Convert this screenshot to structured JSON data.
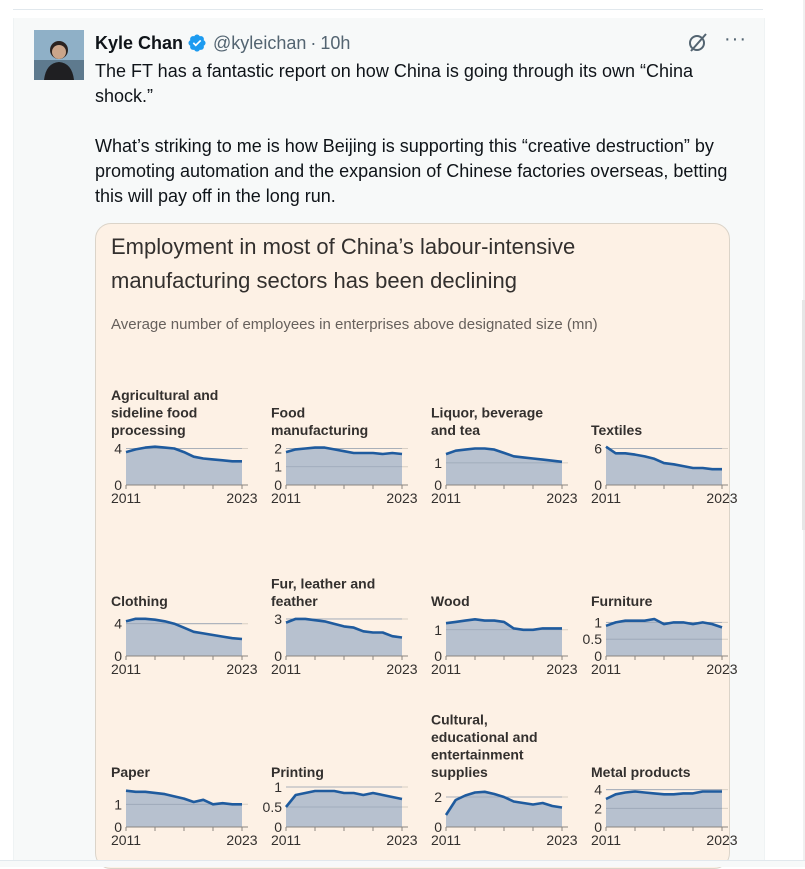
{
  "author": {
    "name": "Kyle Chan",
    "handle": "@kyleichan",
    "separator": "·",
    "time": "10h"
  },
  "tweet": {
    "paragraph1": "The FT has a fantastic report on how China is going through its own “China shock.”",
    "paragraph2": "What’s striking to me is how Beijing is supporting this “creative destruction” by promoting automation and the expansion of Chinese factories overseas, betting this will pay off in the long run."
  },
  "icons": {
    "verified": "verified-badge-icon",
    "grok": "grok-icon",
    "more": "more-icon",
    "more_glyph": "···"
  },
  "colors": {
    "verified": "#1d9bf0",
    "chart_background": "#fdf1e5",
    "series_line": "#1f5b9e",
    "series_fill": "#b7c1cf"
  },
  "chart_data": [
    {
      "type": "area",
      "title_lines": [
        "Agricultural and",
        "sideline food",
        "processing"
      ],
      "x": [
        2011,
        2012,
        2013,
        2014,
        2015,
        2016,
        2017,
        2018,
        2019,
        2020,
        2021,
        2022,
        2023
      ],
      "values": [
        3.6,
        3.9,
        4.1,
        4.2,
        4.1,
        4.0,
        3.6,
        3.1,
        2.9,
        2.8,
        2.7,
        2.6,
        2.6
      ],
      "ylim": [
        0,
        4.6
      ],
      "yticks": [
        {
          "v": 0,
          "label": "0"
        },
        {
          "v": 4,
          "label": "4"
        }
      ],
      "xticks": [
        "2011",
        "2023"
      ]
    },
    {
      "type": "area",
      "title_lines": [
        "Food",
        "manufacturing"
      ],
      "x": [
        2011,
        2012,
        2013,
        2014,
        2015,
        2016,
        2017,
        2018,
        2019,
        2020,
        2021,
        2022,
        2023
      ],
      "values": [
        1.8,
        1.95,
        2.0,
        2.05,
        2.05,
        1.95,
        1.85,
        1.75,
        1.75,
        1.75,
        1.7,
        1.75,
        1.7
      ],
      "ylim": [
        0,
        2.3
      ],
      "yticks": [
        {
          "v": 0,
          "label": "0"
        },
        {
          "v": 1,
          "label": "1"
        },
        {
          "v": 2,
          "label": "2"
        }
      ],
      "xticks": [
        "2011",
        "2023"
      ]
    },
    {
      "type": "area",
      "title_lines": [
        "Liquor, beverage",
        "and tea"
      ],
      "x": [
        2011,
        2012,
        2013,
        2014,
        2015,
        2016,
        2017,
        2018,
        2019,
        2020,
        2021,
        2022,
        2023
      ],
      "values": [
        1.4,
        1.55,
        1.6,
        1.65,
        1.65,
        1.6,
        1.45,
        1.3,
        1.25,
        1.2,
        1.15,
        1.1,
        1.05
      ],
      "ylim": [
        0,
        1.9
      ],
      "yticks": [
        {
          "v": 0,
          "label": "0"
        },
        {
          "v": 1,
          "label": "1"
        }
      ],
      "xticks": [
        "2011",
        "2023"
      ]
    },
    {
      "type": "area",
      "title_lines": [
        "Textiles"
      ],
      "x": [
        2011,
        2012,
        2013,
        2014,
        2015,
        2016,
        2017,
        2018,
        2019,
        2020,
        2021,
        2022,
        2023
      ],
      "values": [
        6.3,
        5.2,
        5.2,
        5.0,
        4.7,
        4.3,
        3.6,
        3.4,
        3.1,
        2.8,
        2.8,
        2.6,
        2.6
      ],
      "ylim": [
        0,
        6.9
      ],
      "yticks": [
        {
          "v": 0,
          "label": "0"
        },
        {
          "v": 6,
          "label": "6"
        }
      ],
      "xticks": [
        "2011",
        "2023"
      ]
    },
    {
      "type": "area",
      "title_lines": [
        "Clothing"
      ],
      "x": [
        2011,
        2012,
        2013,
        2014,
        2015,
        2016,
        2017,
        2018,
        2019,
        2020,
        2021,
        2022,
        2023
      ],
      "values": [
        4.3,
        4.6,
        4.6,
        4.5,
        4.3,
        4.0,
        3.5,
        3.0,
        2.8,
        2.6,
        2.4,
        2.2,
        2.1
      ],
      "ylim": [
        0,
        5.2
      ],
      "yticks": [
        {
          "v": 0,
          "label": "0"
        },
        {
          "v": 4,
          "label": "4"
        }
      ],
      "xticks": [
        "2011",
        "2023"
      ]
    },
    {
      "type": "area",
      "title_lines": [
        "Fur, leather and",
        "feather"
      ],
      "x": [
        2011,
        2012,
        2013,
        2014,
        2015,
        2016,
        2017,
        2018,
        2019,
        2020,
        2021,
        2022,
        2023
      ],
      "values": [
        2.7,
        3.0,
        3.0,
        2.9,
        2.8,
        2.6,
        2.4,
        2.3,
        2.0,
        1.9,
        1.9,
        1.6,
        1.5
      ],
      "ylim": [
        0,
        3.4
      ],
      "yticks": [
        {
          "v": 0,
          "label": "0"
        },
        {
          "v": 3,
          "label": "3"
        }
      ],
      "xticks": [
        "2011",
        "2023"
      ]
    },
    {
      "type": "area",
      "title_lines": [
        "Wood"
      ],
      "x": [
        2011,
        2012,
        2013,
        2014,
        2015,
        2016,
        2017,
        2018,
        2019,
        2020,
        2021,
        2022,
        2023
      ],
      "values": [
        1.25,
        1.3,
        1.35,
        1.4,
        1.35,
        1.35,
        1.3,
        1.05,
        1.0,
        1.0,
        1.05,
        1.05,
        1.05
      ],
      "ylim": [
        0,
        1.6
      ],
      "yticks": [
        {
          "v": 0,
          "label": "0"
        },
        {
          "v": 1,
          "label": "1"
        }
      ],
      "xticks": [
        "2011",
        "2023"
      ]
    },
    {
      "type": "area",
      "title_lines": [
        "Furniture"
      ],
      "x": [
        2011,
        2012,
        2013,
        2014,
        2015,
        2016,
        2017,
        2018,
        2019,
        2020,
        2021,
        2022,
        2023
      ],
      "values": [
        0.9,
        1.0,
        1.05,
        1.05,
        1.05,
        1.1,
        0.95,
        1.0,
        1.0,
        0.95,
        1.0,
        0.95,
        0.85
      ],
      "ylim": [
        0,
        1.25
      ],
      "yticks": [
        {
          "v": 0,
          "label": "0"
        },
        {
          "v": 0.5,
          "label": "0.5"
        },
        {
          "v": 1,
          "label": "1"
        }
      ],
      "xticks": [
        "2011",
        "2023"
      ]
    },
    {
      "type": "area",
      "title_lines": [
        "Paper"
      ],
      "x": [
        2011,
        2012,
        2013,
        2014,
        2015,
        2016,
        2017,
        2018,
        2019,
        2020,
        2021,
        2022,
        2023
      ],
      "values": [
        1.6,
        1.55,
        1.55,
        1.5,
        1.45,
        1.35,
        1.25,
        1.1,
        1.2,
        1.0,
        1.05,
        1.0,
        1.0
      ],
      "ylim": [
        0,
        1.85
      ],
      "yticks": [
        {
          "v": 0,
          "label": "0"
        },
        {
          "v": 1,
          "label": "1"
        }
      ],
      "xticks": [
        "2011",
        "2023"
      ]
    },
    {
      "type": "area",
      "title_lines": [
        "Printing"
      ],
      "x": [
        2011,
        2012,
        2013,
        2014,
        2015,
        2016,
        2017,
        2018,
        2019,
        2020,
        2021,
        2022,
        2023
      ],
      "values": [
        0.5,
        0.8,
        0.85,
        0.9,
        0.9,
        0.9,
        0.85,
        0.85,
        0.8,
        0.85,
        0.8,
        0.75,
        0.7
      ],
      "ylim": [
        0,
        1.05
      ],
      "yticks": [
        {
          "v": 0,
          "label": "0"
        },
        {
          "v": 0.5,
          "label": "0.5"
        },
        {
          "v": 1,
          "label": "1"
        }
      ],
      "xticks": [
        "2011",
        "2023"
      ]
    },
    {
      "type": "area",
      "title_lines": [
        "Cultural,",
        "educational and",
        "entertainment",
        "supplies"
      ],
      "x": [
        2011,
        2012,
        2013,
        2014,
        2015,
        2016,
        2017,
        2018,
        2019,
        2020,
        2021,
        2022,
        2023
      ],
      "values": [
        0.8,
        1.8,
        2.1,
        2.3,
        2.35,
        2.2,
        2.0,
        1.7,
        1.6,
        1.5,
        1.6,
        1.4,
        1.3
      ],
      "ylim": [
        0,
        2.8
      ],
      "yticks": [
        {
          "v": 0,
          "label": "0"
        },
        {
          "v": 2,
          "label": "2"
        }
      ],
      "xticks": [
        "2011",
        "2023"
      ]
    },
    {
      "type": "area",
      "title_lines": [
        "Metal products"
      ],
      "x": [
        2011,
        2012,
        2013,
        2014,
        2015,
        2016,
        2017,
        2018,
        2019,
        2020,
        2021,
        2022,
        2023
      ],
      "values": [
        3.0,
        3.5,
        3.7,
        3.8,
        3.7,
        3.6,
        3.5,
        3.5,
        3.6,
        3.6,
        3.8,
        3.8,
        3.8
      ],
      "ylim": [
        0,
        4.5
      ],
      "yticks": [
        {
          "v": 0,
          "label": "0"
        },
        {
          "v": 2,
          "label": "2"
        },
        {
          "v": 4,
          "label": "4"
        }
      ],
      "xticks": [
        "2011",
        "2023"
      ]
    }
  ],
  "chart_header": {
    "title": "Employment in most of China’s labour-intensive manufacturing sectors has been declining",
    "subtitle": "Average number of employees in enterprises above designated size (mn)"
  }
}
